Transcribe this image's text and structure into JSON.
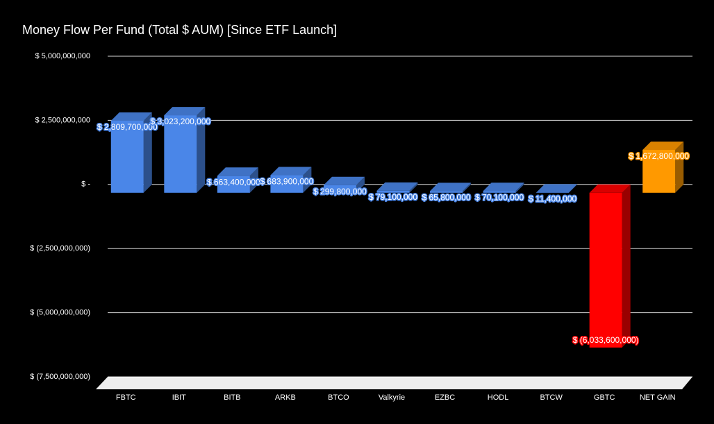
{
  "chart_data": {
    "type": "bar3d",
    "title": "Money Flow Per Fund (Total $ AUM) [Since ETF Launch]",
    "categories": [
      "FBTC",
      "IBIT",
      "BITB",
      "ARKB",
      "BTCO",
      "Valkyrie",
      "EZBC",
      "HODL",
      "BTCW",
      "GBTC",
      "NET GAIN"
    ],
    "values": [
      2809700000,
      3023200000,
      663400000,
      683900000,
      299800000,
      79100000,
      65800000,
      70100000,
      11400000,
      -6033600000,
      1672800000
    ],
    "value_labels": [
      "$ 2,809,700,000",
      "$ 3,023,200,000",
      "$ 663,400,000",
      "$ 683,900,000",
      "$ 299,800,000",
      "$ 79,100,000",
      "$ 65,800,000",
      "$ 70,100,000",
      "$ 11,400,000",
      "$ (6,033,600,000)",
      "$ 1,672,800,000"
    ],
    "colors": [
      "#4a86e8",
      "#4a86e8",
      "#4a86e8",
      "#4a86e8",
      "#4a86e8",
      "#4a86e8",
      "#4a86e8",
      "#4a86e8",
      "#4a86e8",
      "#ff0000",
      "#ff9900"
    ],
    "ylim": [
      -7500000000,
      5000000000
    ],
    "yticks": [
      {
        "value": 5000000000,
        "label": "$ 5,000,000,000"
      },
      {
        "value": 2500000000,
        "label": "$ 2,500,000,000"
      },
      {
        "value": 0,
        "label": "$ -"
      },
      {
        "value": -2500000000,
        "label": "$ (2,500,000,000)"
      },
      {
        "value": -5000000000,
        "label": "$ (5,000,000,000)"
      },
      {
        "value": -7500000000,
        "label": "$ (7,500,000,000)"
      }
    ],
    "grid": true
  }
}
